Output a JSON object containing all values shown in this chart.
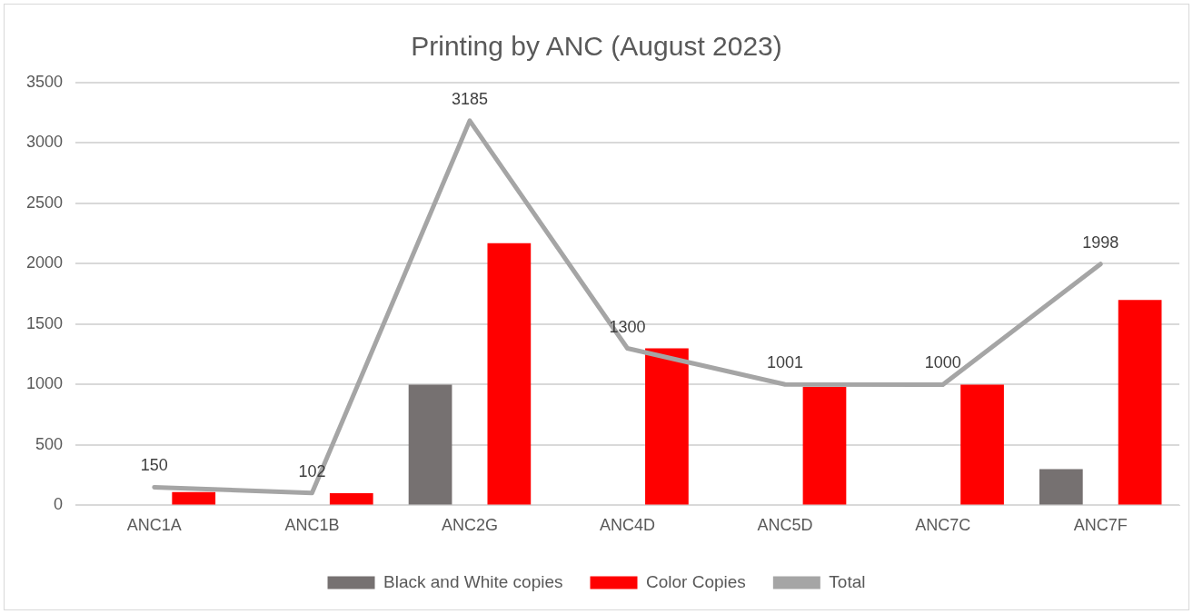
{
  "chart_data": {
    "type": "bar",
    "title": "Printing by ANC (August 2023)",
    "categories": [
      "ANC1A",
      "ANC1B",
      "ANC2G",
      "ANC4D",
      "ANC5D",
      "ANC7C",
      "ANC7F"
    ],
    "series": [
      {
        "name": "Black and White copies",
        "color": "#767171",
        "values": [
          0,
          0,
          1000,
          0,
          0,
          0,
          300
        ]
      },
      {
        "name": "Color Copies",
        "color": "#ff0000",
        "values": [
          110,
          100,
          2170,
          1300,
          980,
          1000,
          1700
        ]
      },
      {
        "name": "Total",
        "type": "line",
        "color": "#a5a5a5",
        "values": [
          150,
          102,
          3185,
          1300,
          1001,
          1000,
          1998
        ],
        "value_labels": [
          "150",
          "102",
          "3185",
          "1300",
          "1001",
          "1000",
          "1998"
        ]
      }
    ],
    "ylim": [
      0,
      3500
    ],
    "yticks": [
      0,
      500,
      1000,
      1500,
      2000,
      2500,
      3000,
      3500
    ],
    "grid": "y",
    "legend": "bottom",
    "marker": "none"
  }
}
